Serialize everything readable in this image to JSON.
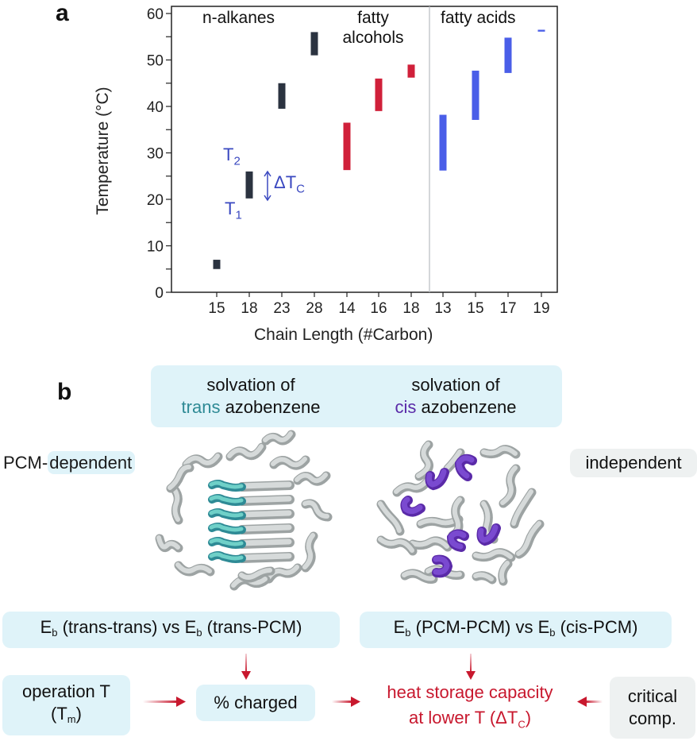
{
  "panel_a": {
    "label": "a",
    "group_labels": {
      "alkanes": "n-alkanes",
      "alcohols_line1": "fatty",
      "alcohols_line2": "alcohols",
      "acids": "fatty acids"
    },
    "annotations": {
      "t2": "T",
      "t2_sub": "2",
      "t1": "T",
      "t1_sub": "1",
      "delta": "ΔT",
      "delta_sub": "C"
    }
  },
  "chart_data": {
    "type": "bar",
    "subtype": "floating-range",
    "title": "",
    "xlabel": "Chain Length (#Carbon)",
    "ylabel": "Temperature (°C)",
    "ylim": [
      0,
      60
    ],
    "yticks": [
      0,
      10,
      20,
      30,
      40,
      50,
      60
    ],
    "grid": false,
    "categories": [
      "15",
      "18",
      "23",
      "28",
      "14",
      "16",
      "18",
      "13",
      "15",
      "17",
      "19"
    ],
    "series": [
      {
        "name": "n-alkanes",
        "color": "#2b3340",
        "categories": [
          "15",
          "18",
          "23",
          "28"
        ],
        "ranges": [
          [
            5.0,
            7.0
          ],
          [
            20.2,
            26.0
          ],
          [
            39.5,
            45.0
          ],
          [
            51.0,
            56.0
          ]
        ]
      },
      {
        "name": "fatty alcohols",
        "color": "#d0203a",
        "categories": [
          "14",
          "16",
          "18"
        ],
        "ranges": [
          [
            26.3,
            36.5
          ],
          [
            39.0,
            46.0
          ],
          [
            46.2,
            49.0
          ]
        ]
      },
      {
        "name": "fatty acids",
        "color": "#4a5ee8",
        "categories": [
          "13",
          "15",
          "17",
          "19"
        ],
        "ranges": [
          [
            26.2,
            38.2
          ],
          [
            37.1,
            47.7
          ],
          [
            47.2,
            54.8
          ],
          [
            56.1,
            56.5
          ]
        ]
      }
    ],
    "annotations": [
      "T2 (top of bar)",
      "T1 (bottom of bar)",
      "ΔTc (bar height)"
    ],
    "separator_between": [
      "18 (fatty alcohols)",
      "13 (fatty acids)"
    ]
  },
  "panel_b": {
    "label": "b",
    "trans_box": {
      "line1": "solvation of",
      "colored": "trans",
      "rest": " azobenzene"
    },
    "cis_box": {
      "line1": "solvation of",
      "colored": "cis",
      "rest": " azobenzene"
    },
    "pcm_prefix": "PCM-",
    "dependent": "dependent",
    "independent": "independent",
    "eb_trans": {
      "e1": "E",
      "s1": "b",
      "t1": " (trans-trans) vs ",
      "e2": "E",
      "s2": "b",
      "t2": " (trans-PCM)"
    },
    "eb_cis": {
      "e1": "E",
      "s1": "b",
      "t1": " (PCM-PCM) vs ",
      "e2": "E",
      "s2": "b",
      "t2": " (cis-PCM)"
    },
    "operation": {
      "line1": "operation T",
      "line2_open": "(T",
      "line2_sub": "m",
      "line2_close": ")"
    },
    "charged": "% charged",
    "heat": {
      "line1": "heat storage capacity",
      "line2_open": "at lower T (ΔT",
      "line2_sub": "C",
      "line2_close": ")"
    },
    "critical": {
      "line1": "critical",
      "line2": "comp."
    }
  },
  "colors": {
    "box_cyan": "#dff3f9",
    "box_gray": "#eef1f1",
    "arrow_red": "#c8182e",
    "trans_teal": "#2e8a95",
    "cis_purple": "#5a2aa8",
    "annotation_blue": "#3a48c0"
  }
}
